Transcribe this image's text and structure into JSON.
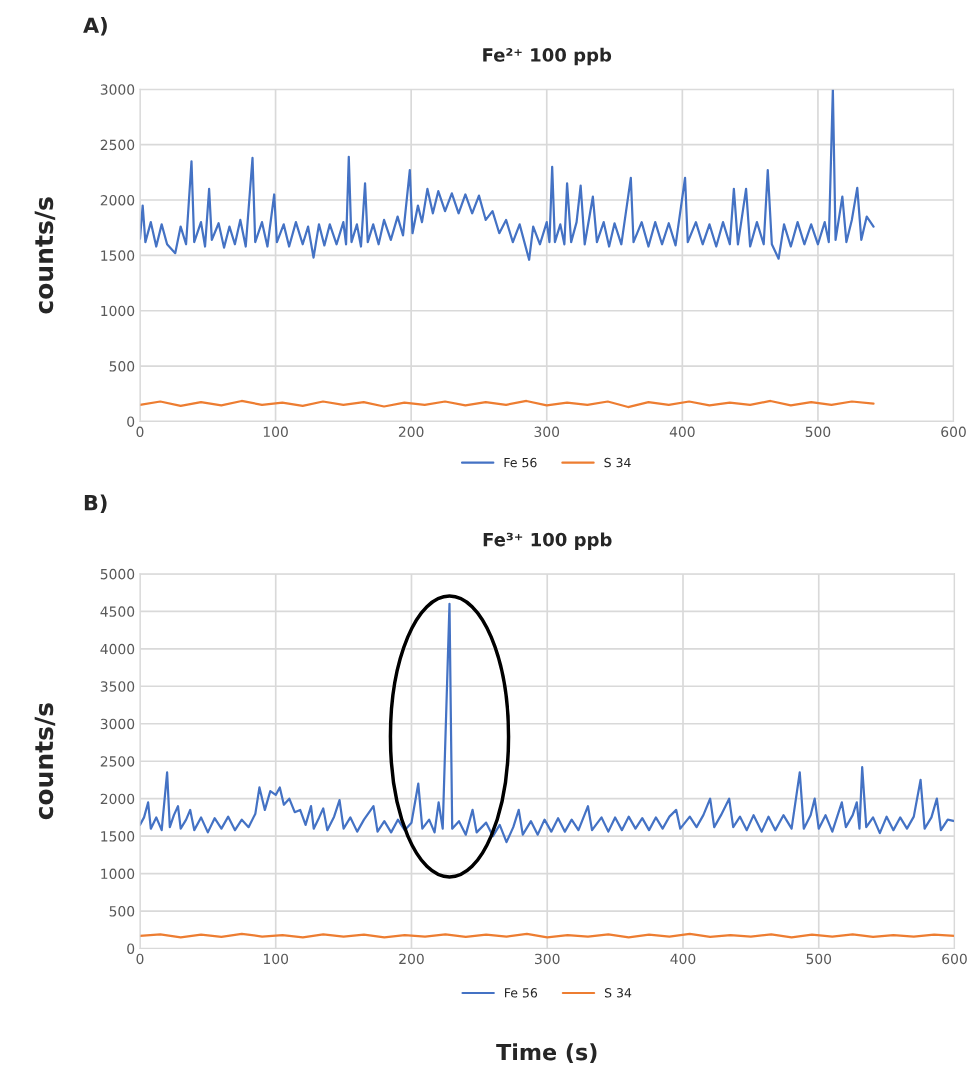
{
  "chart_data": [
    {
      "type": "line",
      "title": "Fe²⁺ 100 ppb",
      "ylabel": "counts/s",
      "annotations": [
        "A)"
      ],
      "xlim": [
        0,
        600
      ],
      "xticks": [
        0,
        100,
        200,
        300,
        400,
        500,
        600
      ],
      "ylim": [
        0,
        3000
      ],
      "yticks": [
        0,
        500,
        1000,
        1500,
        2000,
        2500,
        3000
      ],
      "grid": true,
      "legend": "bottom",
      "series": [
        {
          "name": "Fe 56",
          "color": "#4472c4",
          "x": [
            0,
            2,
            4,
            8,
            12,
            16,
            20,
            26,
            30,
            34,
            38,
            40,
            45,
            48,
            51,
            53,
            58,
            62,
            66,
            70,
            74,
            78,
            83,
            85,
            90,
            94,
            99,
            101,
            106,
            110,
            115,
            120,
            124,
            128,
            132,
            136,
            140,
            145,
            150,
            152,
            154,
            156,
            160,
            163,
            166,
            168,
            172,
            176,
            180,
            185,
            190,
            194,
            199,
            201,
            205,
            208,
            212,
            216,
            220,
            225,
            230,
            235,
            240,
            245,
            250,
            255,
            260,
            265,
            270,
            275,
            280,
            287,
            290,
            295,
            300,
            302,
            304,
            306,
            310,
            313,
            315,
            318,
            322,
            325,
            328,
            334,
            337,
            342,
            346,
            350,
            355,
            362,
            364,
            370,
            375,
            380,
            385,
            390,
            395,
            402,
            404,
            410,
            415,
            420,
            425,
            430,
            435,
            438,
            441,
            447,
            450,
            455,
            460,
            463,
            466,
            471,
            475,
            480,
            485,
            490,
            495,
            500,
            505,
            508,
            511,
            513,
            518,
            521,
            525,
            529,
            532,
            536,
            541
          ],
          "values": [
            1650,
            1950,
            1620,
            1800,
            1580,
            1780,
            1600,
            1520,
            1760,
            1600,
            2350,
            1620,
            1800,
            1580,
            2100,
            1640,
            1790,
            1570,
            1760,
            1600,
            1820,
            1580,
            2380,
            1620,
            1800,
            1580,
            2050,
            1620,
            1780,
            1580,
            1800,
            1600,
            1760,
            1480,
            1780,
            1590,
            1780,
            1600,
            1800,
            1600,
            2390,
            1620,
            1780,
            1580,
            2150,
            1620,
            1780,
            1600,
            1820,
            1640,
            1850,
            1680,
            2270,
            1700,
            1950,
            1800,
            2100,
            1880,
            2080,
            1900,
            2060,
            1880,
            2050,
            1880,
            2040,
            1820,
            1900,
            1700,
            1820,
            1620,
            1780,
            1460,
            1760,
            1600,
            1800,
            1620,
            2300,
            1620,
            1780,
            1600,
            2150,
            1620,
            1800,
            2130,
            1600,
            2030,
            1620,
            1800,
            1580,
            1790,
            1600,
            2200,
            1620,
            1800,
            1580,
            1800,
            1600,
            1790,
            1590,
            2200,
            1620,
            1800,
            1600,
            1780,
            1580,
            1800,
            1600,
            2100,
            1600,
            2100,
            1580,
            1800,
            1600,
            2270,
            1600,
            1470,
            1780,
            1580,
            1800,
            1600,
            1780,
            1600,
            1800,
            1620,
            3000,
            1640,
            2030,
            1620,
            1820,
            2110,
            1640,
            1850,
            1760
          ]
        },
        {
          "name": "S 34",
          "color": "#ed7d31",
          "x": [
            0,
            15,
            30,
            45,
            60,
            75,
            90,
            105,
            120,
            135,
            150,
            165,
            180,
            195,
            210,
            225,
            240,
            255,
            270,
            285,
            300,
            315,
            330,
            345,
            360,
            375,
            390,
            405,
            420,
            435,
            450,
            465,
            480,
            495,
            510,
            525,
            541
          ],
          "values": [
            150,
            180,
            140,
            175,
            145,
            185,
            150,
            170,
            140,
            180,
            150,
            175,
            135,
            170,
            150,
            180,
            145,
            175,
            150,
            185,
            145,
            170,
            150,
            180,
            130,
            175,
            150,
            180,
            145,
            170,
            150,
            185,
            145,
            175,
            150,
            180,
            160
          ]
        }
      ]
    },
    {
      "type": "line",
      "title": "Fe³⁺ 100 ppb",
      "ylabel": "counts/s",
      "xlabel": "Time (s)",
      "annotations": [
        "B)"
      ],
      "xlim": [
        0,
        600
      ],
      "xticks": [
        0,
        100,
        200,
        300,
        400,
        500,
        600
      ],
      "ylim": [
        0,
        5000
      ],
      "yticks": [
        0,
        500,
        1000,
        1500,
        2000,
        2500,
        3000,
        3500,
        4000,
        4500,
        5000
      ],
      "grid": true,
      "legend": "bottom",
      "series": [
        {
          "name": "Fe 56",
          "color": "#4472c4",
          "x": [
            0,
            3,
            6,
            8,
            12,
            16,
            20,
            22,
            25,
            28,
            30,
            34,
            37,
            40,
            45,
            50,
            55,
            60,
            65,
            70,
            75,
            80,
            85,
            88,
            92,
            96,
            100,
            103,
            106,
            110,
            114,
            118,
            122,
            126,
            128,
            132,
            135,
            138,
            143,
            147,
            150,
            155,
            160,
            165,
            172,
            175,
            180,
            185,
            190,
            195,
            200,
            205,
            208,
            213,
            217,
            220,
            223,
            228,
            230,
            235,
            240,
            245,
            248,
            255,
            260,
            265,
            270,
            275,
            279,
            282,
            288,
            293,
            298,
            303,
            308,
            313,
            318,
            323,
            330,
            333,
            340,
            345,
            350,
            355,
            360,
            365,
            370,
            375,
            380,
            385,
            390,
            395,
            398,
            405,
            410,
            415,
            420,
            423,
            428,
            434,
            437,
            442,
            447,
            452,
            458,
            463,
            468,
            474,
            480,
            486,
            489,
            494,
            497,
            500,
            505,
            510,
            517,
            520,
            525,
            528,
            530,
            532,
            535,
            540,
            545,
            550,
            555,
            560,
            565,
            570,
            575,
            578,
            583,
            587,
            590,
            595,
            600
          ],
          "values": [
            1650,
            1750,
            1950,
            1600,
            1750,
            1580,
            2350,
            1620,
            1780,
            1900,
            1600,
            1720,
            1850,
            1580,
            1750,
            1550,
            1740,
            1600,
            1760,
            1580,
            1720,
            1620,
            1800,
            2150,
            1850,
            2100,
            2050,
            2150,
            1920,
            2000,
            1820,
            1850,
            1650,
            1900,
            1600,
            1750,
            1870,
            1580,
            1760,
            1980,
            1600,
            1750,
            1560,
            1720,
            1900,
            1560,
            1700,
            1550,
            1720,
            1580,
            1680,
            2200,
            1600,
            1720,
            1550,
            1950,
            1600,
            4600,
            1600,
            1700,
            1520,
            1850,
            1550,
            1680,
            1500,
            1650,
            1420,
            1620,
            1850,
            1520,
            1700,
            1520,
            1720,
            1560,
            1740,
            1560,
            1720,
            1580,
            1900,
            1580,
            1750,
            1560,
            1750,
            1580,
            1760,
            1600,
            1740,
            1580,
            1750,
            1600,
            1760,
            1850,
            1600,
            1760,
            1620,
            1780,
            2000,
            1620,
            1780,
            2000,
            1620,
            1760,
            1580,
            1780,
            1560,
            1760,
            1580,
            1780,
            1600,
            2350,
            1600,
            1780,
            2000,
            1600,
            1780,
            1560,
            1950,
            1620,
            1780,
            1950,
            1600,
            2420,
            1620,
            1750,
            1540,
            1760,
            1580,
            1750,
            1600,
            1760,
            2250,
            1600,
            1750,
            2000,
            1580,
            1720,
            1700
          ]
        },
        {
          "name": "S 34",
          "color": "#ed7d31",
          "x": [
            0,
            15,
            30,
            45,
            60,
            75,
            90,
            105,
            120,
            135,
            150,
            165,
            180,
            195,
            210,
            225,
            240,
            255,
            270,
            285,
            300,
            315,
            330,
            345,
            360,
            375,
            390,
            405,
            420,
            435,
            450,
            465,
            480,
            495,
            510,
            525,
            540,
            555,
            570,
            585,
            600
          ],
          "values": [
            170,
            190,
            150,
            185,
            155,
            195,
            160,
            180,
            150,
            190,
            160,
            185,
            150,
            180,
            160,
            190,
            155,
            185,
            160,
            195,
            150,
            180,
            160,
            190,
            150,
            185,
            160,
            195,
            155,
            180,
            160,
            190,
            150,
            185,
            160,
            190,
            155,
            180,
            160,
            185,
            170
          ]
        }
      ]
    }
  ]
}
